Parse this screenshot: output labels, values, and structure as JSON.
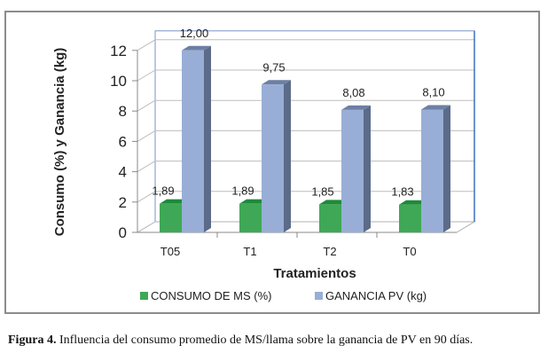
{
  "chart_data": {
    "type": "bar",
    "categories": [
      "T05",
      "T1",
      "T2",
      "T0"
    ],
    "series": [
      {
        "name": "CONSUMO DE MS (%)",
        "values": [
          1.89,
          1.89,
          1.85,
          1.83
        ],
        "labels": [
          "1,89",
          "1,89",
          "1,85",
          "1,83"
        ],
        "color": "#3fa856",
        "top": "#1e8a3a"
      },
      {
        "name": "GANANCIA PV (kg)",
        "values": [
          12.0,
          9.75,
          8.08,
          8.1
        ],
        "labels": [
          "12,00",
          "9,75",
          "8,08",
          "8,10"
        ],
        "color": "#98aed6",
        "side": "#5b6b88"
      }
    ],
    "xlabel": "Tratamientos",
    "ylabel": "Consumo (%) y Ganancia (kg)",
    "ylim": [
      0,
      12
    ],
    "yticks": [
      "0",
      "2",
      "4",
      "6",
      "8",
      "10",
      "12"
    ],
    "grid": true,
    "legend": "bottom"
  },
  "caption": {
    "bold": "Figura 4.",
    "text": " Influencia del consumo promedio de MS/llama sobre la ganancia de PV en 90 días."
  }
}
